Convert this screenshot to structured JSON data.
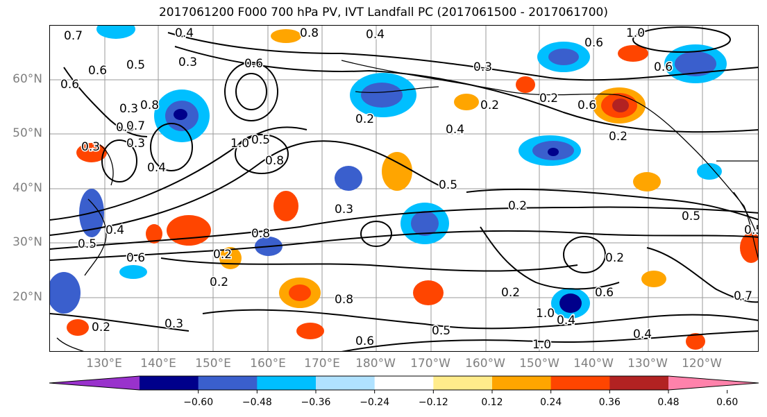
{
  "title": "2017061200 F000 700 hPa PV, IVT Landfall PC (2017061500 - 2017061700)",
  "lat_labels": [
    {
      "name": "lat-60n",
      "text": "60°N"
    },
    {
      "name": "lat-50n",
      "text": "50°N"
    },
    {
      "name": "lat-40n",
      "text": "40°N"
    },
    {
      "name": "lat-30n",
      "text": "30°N"
    },
    {
      "name": "lat-20n",
      "text": "20°N"
    }
  ],
  "lon_labels": [
    {
      "name": "lon-130e",
      "text": "130°E"
    },
    {
      "name": "lon-140e",
      "text": "140°E"
    },
    {
      "name": "lon-150e",
      "text": "150°E"
    },
    {
      "name": "lon-160e",
      "text": "160°E"
    },
    {
      "name": "lon-170e",
      "text": "170°E"
    },
    {
      "name": "lon-180w",
      "text": "180°W"
    },
    {
      "name": "lon-170w",
      "text": "170°W"
    },
    {
      "name": "lon-160w",
      "text": "160°W"
    },
    {
      "name": "lon-150w",
      "text": "150°W"
    },
    {
      "name": "lon-140w",
      "text": "140°W"
    },
    {
      "name": "lon-130w",
      "text": "130°W"
    },
    {
      "name": "lon-120w",
      "text": "120°W"
    }
  ],
  "colorbar": {
    "ticks": [
      "−0.60",
      "−0.48",
      "−0.36",
      "−0.24",
      "−0.12",
      "0.12",
      "0.24",
      "0.36",
      "0.48",
      "0.60"
    ],
    "colors": [
      "#9932cc",
      "#00008b",
      "#3a5fcd",
      "#00bfff",
      "#b0e2ff",
      "#ffffff",
      "#ffec8b",
      "#ffa500",
      "#ff4500",
      "#b22222",
      "#ff82ab"
    ]
  },
  "contour_labels": [
    "0.4",
    "0.3",
    "0.5",
    "0.8",
    "1.0",
    "0.6",
    "0.7",
    "0.3",
    "0.2",
    "0.5",
    "0.6",
    "0.6",
    "0.3",
    "0.6",
    "0.4",
    "0.2",
    "0.2",
    "0.4",
    "0.2",
    "0.3",
    "0.5",
    "1.0",
    "0.2",
    "0.5",
    "0.8",
    "0.2",
    "0.6",
    "0.2",
    "0.3",
    "0.8",
    "0.2",
    "0.4",
    "0.6",
    "0.5",
    "1.0",
    "0.4",
    "0.6",
    "1.0",
    "0.3",
    "0.3",
    "0.2",
    "0.4",
    "0.2",
    "0.7",
    "0.5",
    "0.5",
    "0.4",
    "0.7",
    "0.6",
    "0.5",
    "0.8",
    "0.8",
    "0.6"
  ]
}
